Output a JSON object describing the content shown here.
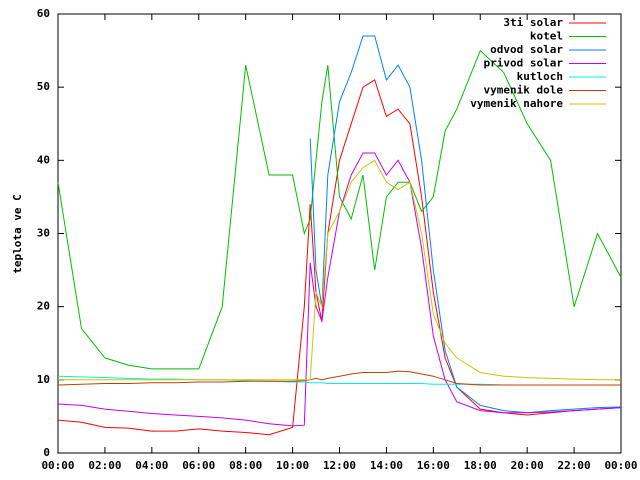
{
  "chart_data": {
    "type": "line",
    "ylabel": "teplota ve C",
    "x": [
      0,
      1,
      2,
      3,
      4,
      5,
      6,
      7,
      8,
      9,
      10,
      10.5,
      10.75,
      11,
      11.25,
      11.5,
      12,
      12.5,
      13,
      13.5,
      14,
      14.5,
      15,
      15.5,
      16,
      16.5,
      17,
      18,
      19,
      20,
      21,
      22,
      23,
      24
    ],
    "xlim": [
      0,
      24
    ],
    "xticks": [
      {
        "value": 0,
        "label": "00:00"
      },
      {
        "value": 2,
        "label": "02:00"
      },
      {
        "value": 4,
        "label": "04:00"
      },
      {
        "value": 6,
        "label": "06:00"
      },
      {
        "value": 8,
        "label": "08:00"
      },
      {
        "value": 10,
        "label": "10:00"
      },
      {
        "value": 12,
        "label": "12:00"
      },
      {
        "value": 14,
        "label": "14:00"
      },
      {
        "value": 16,
        "label": "16:00"
      },
      {
        "value": 18,
        "label": "18:00"
      },
      {
        "value": 20,
        "label": "20:00"
      },
      {
        "value": 22,
        "label": "22:00"
      },
      {
        "value": 24,
        "label": "00:00"
      }
    ],
    "ylim": [
      0,
      60
    ],
    "yticks": [
      0,
      10,
      20,
      30,
      40,
      50,
      60
    ],
    "grid": false,
    "legend": "top-right",
    "series": [
      {
        "name": "3ti solar",
        "color": "#ff0000",
        "values": [
          4.5,
          4.2,
          3.5,
          3.4,
          3.0,
          3.0,
          3.3,
          3.0,
          2.8,
          2.5,
          3.5,
          20,
          34,
          22,
          18,
          30,
          40,
          45,
          50,
          51,
          46,
          47,
          45,
          35,
          22,
          13,
          9,
          6,
          5.5,
          5.2,
          5.5,
          5.8,
          6,
          6.2
        ]
      },
      {
        "name": "kotel",
        "color": "#00c000",
        "values": [
          37,
          17,
          13,
          12,
          11.5,
          11.5,
          11.5,
          20,
          53,
          38,
          38,
          30,
          32,
          40,
          48,
          53,
          35,
          32,
          38,
          25,
          35,
          37,
          37,
          33,
          35,
          44,
          47,
          55,
          52,
          45,
          40,
          20,
          30,
          24
        ]
      },
      {
        "name": "odvod solar",
        "color": "#0080ff",
        "values": [
          null,
          null,
          null,
          null,
          null,
          null,
          null,
          null,
          null,
          null,
          null,
          null,
          43,
          25,
          20,
          38,
          48,
          52,
          57,
          57,
          51,
          53,
          50,
          40,
          25,
          14,
          9,
          6.5,
          5.8,
          5.5,
          5.8,
          6,
          6.2,
          6.3
        ]
      },
      {
        "name": "privod solar",
        "color": "#c000ff",
        "values": [
          6.7,
          6.5,
          6,
          5.7,
          5.4,
          5.2,
          5,
          4.8,
          4.5,
          4,
          3.7,
          3.8,
          26,
          20,
          18,
          24,
          33,
          38,
          41,
          41,
          38,
          40,
          37,
          28,
          16,
          10,
          7,
          5.8,
          5.5,
          5.5,
          5.6,
          5.8,
          6,
          6.2
        ]
      },
      {
        "name": "kutloch",
        "color": "#00eeee",
        "values": [
          10.5,
          10.4,
          10.3,
          10.2,
          10.1,
          10.1,
          10,
          10,
          9.9,
          9.8,
          9.7,
          9.7,
          9.6,
          9.6,
          9.6,
          9.5,
          9.5,
          9.5,
          9.5,
          9.5,
          9.5,
          9.5,
          9.5,
          9.5,
          9.4,
          9.4,
          9.4,
          9.4,
          9.3,
          9.3,
          9.3,
          9.3,
          9.3,
          9.3
        ]
      },
      {
        "name": "vymenik dole",
        "color": "#c04000",
        "values": [
          9.3,
          9.4,
          9.5,
          9.5,
          9.6,
          9.6,
          9.7,
          9.7,
          9.8,
          9.8,
          9.8,
          9.9,
          10,
          10.2,
          10,
          10.2,
          10.5,
          10.8,
          11,
          11,
          11,
          11.2,
          11.1,
          10.8,
          10.5,
          10,
          9.5,
          9.3,
          9.3,
          9.3,
          9.3,
          9.3,
          9.3,
          9.3
        ]
      },
      {
        "name": "vymenik nahore",
        "color": "#c8c800",
        "values": [
          10,
          10,
          10,
          10,
          10,
          10,
          10,
          10,
          10,
          10,
          10,
          10,
          10,
          22,
          20,
          30,
          33,
          37,
          39,
          40,
          37,
          36,
          37,
          30,
          19,
          15,
          13,
          11,
          10.5,
          10.3,
          10.2,
          10.1,
          10,
          10
        ]
      }
    ]
  }
}
